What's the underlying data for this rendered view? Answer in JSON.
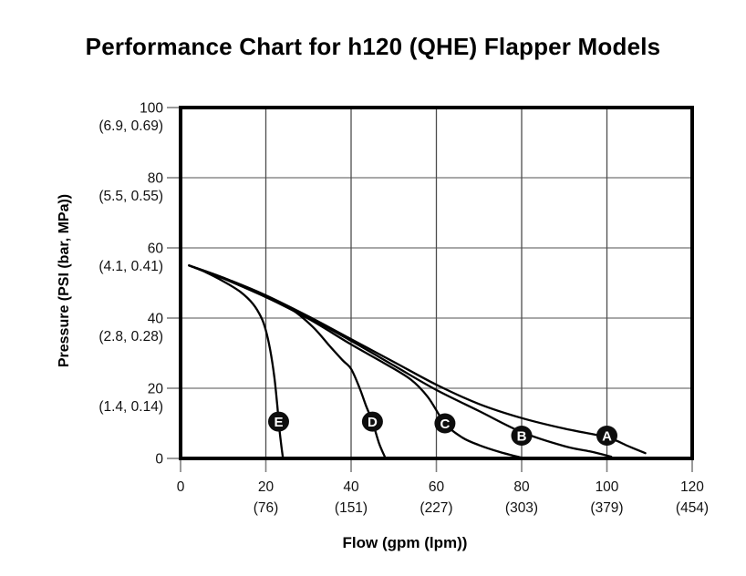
{
  "title": "Performance Chart for h120 (QHE) Flapper Models",
  "chart_data": {
    "type": "line",
    "title": "Performance Chart for h120 (QHE) Flapper Models",
    "xlabel": "Flow (gpm (lpm))",
    "ylabel": "Pressure (PSI (bar, MPa))",
    "xlim": [
      0,
      120
    ],
    "ylim": [
      0,
      100
    ],
    "grid": {
      "x_values": [
        20,
        40,
        60,
        80,
        100
      ],
      "y_values": [
        20,
        40,
        60,
        80
      ]
    },
    "x_ticks": [
      {
        "value": 0,
        "label": "0",
        "sub": ""
      },
      {
        "value": 20,
        "label": "20",
        "sub": "(76)"
      },
      {
        "value": 40,
        "label": "40",
        "sub": "(151)"
      },
      {
        "value": 60,
        "label": "60",
        "sub": "(227)"
      },
      {
        "value": 80,
        "label": "80",
        "sub": "(303)"
      },
      {
        "value": 100,
        "label": "100",
        "sub": "(379)"
      },
      {
        "value": 120,
        "label": "120",
        "sub": "(454)"
      }
    ],
    "y_ticks": [
      {
        "value": 0,
        "label": "0",
        "sub": ""
      },
      {
        "value": 20,
        "label": "20",
        "sub": "(1.4, 0.14)"
      },
      {
        "value": 40,
        "label": "40",
        "sub": "(2.8, 0.28)"
      },
      {
        "value": 60,
        "label": "60",
        "sub": "(4.1, 0.41)"
      },
      {
        "value": 80,
        "label": "80",
        "sub": "(5.5, 0.55)"
      },
      {
        "value": 100,
        "label": "100",
        "sub": "(6.9, 0.69)"
      }
    ],
    "series": [
      {
        "name": "A",
        "points": [
          [
            2,
            55
          ],
          [
            10,
            51.5
          ],
          [
            20,
            46.5
          ],
          [
            30,
            40.5
          ],
          [
            40,
            34
          ],
          [
            50,
            27.5
          ],
          [
            60,
            21
          ],
          [
            70,
            15.5
          ],
          [
            80,
            11.5
          ],
          [
            90,
            8.5
          ],
          [
            100,
            6
          ],
          [
            105,
            3.5
          ],
          [
            109,
            1.5
          ]
        ]
      },
      {
        "name": "B",
        "points": [
          [
            2,
            55
          ],
          [
            10,
            51.5
          ],
          [
            20,
            46.3
          ],
          [
            30,
            40.2
          ],
          [
            40,
            33.5
          ],
          [
            50,
            26.5
          ],
          [
            60,
            19.5
          ],
          [
            70,
            13.5
          ],
          [
            80,
            7.5
          ],
          [
            90,
            3.5
          ],
          [
            96,
            2
          ],
          [
            101,
            0.5
          ]
        ]
      },
      {
        "name": "C",
        "points": [
          [
            2,
            55
          ],
          [
            10,
            51.3
          ],
          [
            20,
            46
          ],
          [
            30,
            39.8
          ],
          [
            40,
            32.5
          ],
          [
            48,
            27
          ],
          [
            54,
            22.5
          ],
          [
            58,
            17.5
          ],
          [
            62,
            10
          ],
          [
            66,
            6
          ],
          [
            70,
            3.8
          ],
          [
            75,
            1.8
          ],
          [
            80,
            0.2
          ]
        ]
      },
      {
        "name": "D",
        "points": [
          [
            2,
            55
          ],
          [
            10,
            51.3
          ],
          [
            20,
            46
          ],
          [
            26,
            42.5
          ],
          [
            31,
            37.5
          ],
          [
            35,
            32
          ],
          [
            38,
            28
          ],
          [
            40,
            25.5
          ],
          [
            42,
            20
          ],
          [
            43.5,
            15
          ],
          [
            45,
            10.5
          ],
          [
            46.5,
            4.5
          ],
          [
            48,
            0.2
          ]
        ]
      },
      {
        "name": "E",
        "points": [
          [
            2,
            55
          ],
          [
            6,
            53
          ],
          [
            10,
            50.5
          ],
          [
            14,
            47.5
          ],
          [
            17,
            44
          ],
          [
            19,
            40
          ],
          [
            20,
            36.5
          ],
          [
            21,
            31
          ],
          [
            22,
            23
          ],
          [
            22.7,
            15
          ],
          [
            23,
            10.5
          ],
          [
            23.6,
            4
          ],
          [
            24,
            0.2
          ]
        ]
      }
    ],
    "markers": [
      {
        "label": "A",
        "x": 100,
        "y": 6.5
      },
      {
        "label": "B",
        "x": 80,
        "y": 6.5
      },
      {
        "label": "C",
        "x": 62,
        "y": 10
      },
      {
        "label": "D",
        "x": 45,
        "y": 10.5
      },
      {
        "label": "E",
        "x": 23,
        "y": 10.5
      }
    ],
    "colors": {
      "curve": "#000000",
      "frame": "#000000",
      "grid_vertical": "#4d4d4d",
      "grid_horizontal": "#8c8c8c",
      "tick": "#808080",
      "tick_text": "#111111",
      "marker_fill": "#0d0d0d",
      "marker_text": "#ffffff"
    }
  }
}
